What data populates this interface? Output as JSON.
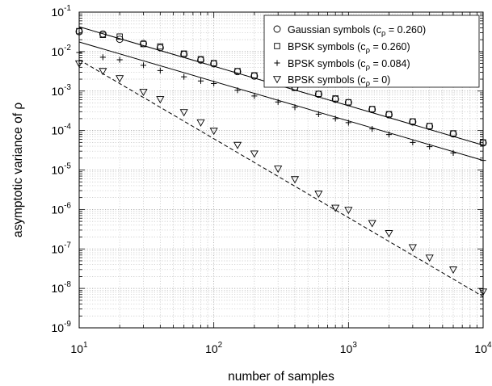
{
  "chart_data": {
    "type": "scatter",
    "xscale": "log",
    "yscale": "log",
    "xlim": [
      10,
      10000
    ],
    "ylim": [
      1e-09,
      0.1
    ],
    "grid": true,
    "grid_minor": true,
    "legend_position": "top-right",
    "xlabel": "number of samples",
    "ylabel": "asymptotic variance of ρ",
    "x_ticks": [
      {
        "value": 10,
        "base": "10",
        "exp": "1"
      },
      {
        "value": 100,
        "base": "10",
        "exp": "2"
      },
      {
        "value": 1000,
        "base": "10",
        "exp": "3"
      },
      {
        "value": 10000,
        "base": "10",
        "exp": "4"
      }
    ],
    "y_ticks": [
      {
        "value": 1e-09,
        "base": "10",
        "exp": "-9"
      },
      {
        "value": 1e-08,
        "base": "10",
        "exp": "-8"
      },
      {
        "value": 1e-07,
        "base": "10",
        "exp": "-7"
      },
      {
        "value": 1e-06,
        "base": "10",
        "exp": "-6"
      },
      {
        "value": 1e-05,
        "base": "10",
        "exp": "-5"
      },
      {
        "value": 0.0001,
        "base": "10",
        "exp": "-4"
      },
      {
        "value": 0.001,
        "base": "10",
        "exp": "-3"
      },
      {
        "value": 0.01,
        "base": "10",
        "exp": "-2"
      },
      {
        "value": 0.1,
        "base": "10",
        "exp": "-1"
      }
    ],
    "series": [
      {
        "name": "Gaussian symbols (cρ = 0.260)",
        "label_prefix": "Gaussian symbols (c",
        "label_sub": "ρ",
        "label_suffix": " = 0.260)",
        "marker": "circle",
        "x": [
          10,
          15,
          20,
          30,
          40,
          60,
          80,
          100,
          150,
          200,
          300,
          400,
          600,
          800,
          1000,
          1500,
          2000,
          3000,
          4000,
          6000,
          10000
        ],
        "y": [
          0.032,
          0.028,
          0.0205,
          0.016,
          0.0125,
          0.0085,
          0.0061,
          0.0049,
          0.0031,
          0.0024,
          0.00155,
          0.00125,
          0.00083,
          0.00062,
          0.00051,
          0.00034,
          0.00025,
          0.000165,
          0.000127,
          8.2e-05,
          4.85e-05
        ]
      },
      {
        "name": "BPSK symbols (cρ = 0.260)",
        "label_prefix": "BPSK symbols (c",
        "label_sub": "ρ",
        "label_suffix": " = 0.260)",
        "marker": "square",
        "x": [
          10,
          15,
          20,
          30,
          40,
          60,
          80,
          100,
          150,
          200,
          300,
          400,
          600,
          800,
          1000,
          1500,
          2000,
          3000,
          4000,
          6000,
          10000
        ],
        "y": [
          0.033,
          0.0265,
          0.024,
          0.0155,
          0.0135,
          0.0089,
          0.0064,
          0.0051,
          0.0032,
          0.0025,
          0.00158,
          0.0012,
          0.00085,
          0.00065,
          0.00052,
          0.00035,
          0.00026,
          0.00017,
          0.00013,
          8.5e-05,
          5e-05
        ]
      },
      {
        "name": "BPSK symbols (cρ = 0.084)",
        "label_prefix": "BPSK symbols (c",
        "label_sub": "ρ",
        "label_suffix": " = 0.084)",
        "marker": "plus",
        "x": [
          10,
          15,
          20,
          30,
          40,
          60,
          80,
          100,
          150,
          200,
          300,
          400,
          600,
          800,
          1000,
          1500,
          2000,
          3000,
          4000,
          6000,
          10000
        ],
        "y": [
          0.0095,
          0.0072,
          0.0062,
          0.0045,
          0.0033,
          0.0023,
          0.0018,
          0.00155,
          0.00105,
          0.00075,
          0.00053,
          0.00039,
          0.00026,
          0.0002,
          0.000158,
          0.00011,
          7.9e-05,
          5e-05,
          3.9e-05,
          2.7e-05,
          1.75e-05
        ]
      },
      {
        "name": "BPSK symbols (cρ = 0)",
        "label_prefix": "BPSK symbols (c",
        "label_sub": "ρ",
        "label_suffix": " = 0)",
        "marker": "triangle-down",
        "x": [
          10,
          15,
          20,
          30,
          40,
          60,
          80,
          100,
          150,
          200,
          300,
          400,
          600,
          800,
          1000,
          1500,
          2000,
          3000,
          4000,
          6000,
          10000
        ],
        "y": [
          0.005,
          0.0032,
          0.0021,
          0.00095,
          0.00062,
          0.00029,
          0.00016,
          9.8e-05,
          4.3e-05,
          2.6e-05,
          1.08e-05,
          5.8e-06,
          2.5e-06,
          1.1e-06,
          9.7e-07,
          4.5e-07,
          2.5e-07,
          1.1e-07,
          6e-08,
          3e-08,
          8.3e-09
        ]
      }
    ],
    "fit_lines": [
      {
        "style": "solid",
        "x": [
          10,
          10000
        ],
        "y": [
          0.0425,
          4.25e-05
        ]
      },
      {
        "style": "solid",
        "x": [
          10,
          10000
        ],
        "y": [
          0.0175,
          1.75e-05
        ]
      },
      {
        "style": "dashed",
        "x": [
          10,
          10000
        ],
        "y": [
          0.0062,
          6.2e-09
        ]
      }
    ]
  }
}
